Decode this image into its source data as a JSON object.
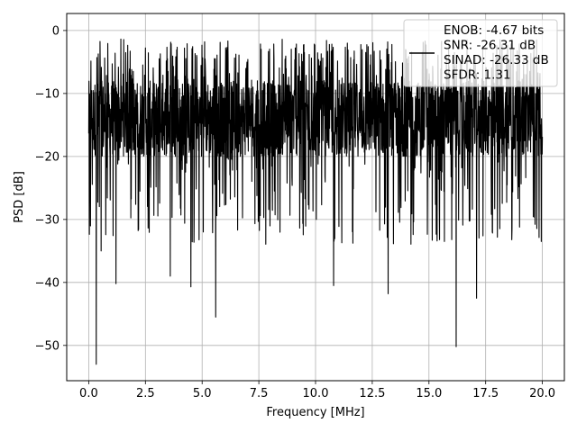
{
  "chart_data": {
    "type": "line",
    "title": "",
    "xlabel": "Frequency [MHz]",
    "ylabel": "PSD [dB]",
    "xlim": [
      -0.97,
      20.97
    ],
    "ylim": [
      -55.6,
      2.7
    ],
    "xticks": [
      0.0,
      2.5,
      5.0,
      7.5,
      10.0,
      12.5,
      15.0,
      17.5,
      20.0
    ],
    "xtick_labels": [
      "0.0",
      "2.5",
      "5.0",
      "7.5",
      "10.0",
      "12.5",
      "15.0",
      "17.5",
      "20.0"
    ],
    "yticks": [
      0,
      -10,
      -20,
      -30,
      -40,
      -50
    ],
    "ytick_labels": [
      "0",
      "−10",
      "−20",
      "−30",
      "−40",
      "−50"
    ],
    "grid": true,
    "legend_position": "top-right",
    "legend_lines": [
      "ENOB: -4.67 bits",
      "SNR: -26.31 dB",
      "SINAD: -26.33 dB",
      "SFDR: 1.31"
    ],
    "line_color": "#000000",
    "series": [
      {
        "x_range": [
          0.0,
          20.0
        ],
        "approx_points": 2048,
        "typical_band_db": [
          -20,
          -8
        ],
        "envelope_max_db": -1.3,
        "deep_dips": [
          {
            "x": 0.33,
            "y": -53.0
          },
          {
            "x": 0.55,
            "y": -35.0
          },
          {
            "x": 1.2,
            "y": -40.2
          },
          {
            "x": 3.6,
            "y": -39.0
          },
          {
            "x": 4.5,
            "y": -40.7
          },
          {
            "x": 5.6,
            "y": -45.5
          },
          {
            "x": 10.8,
            "y": -40.5
          },
          {
            "x": 13.2,
            "y": -41.8
          },
          {
            "x": 16.2,
            "y": -50.2
          },
          {
            "x": 17.1,
            "y": -42.5
          }
        ]
      }
    ]
  }
}
